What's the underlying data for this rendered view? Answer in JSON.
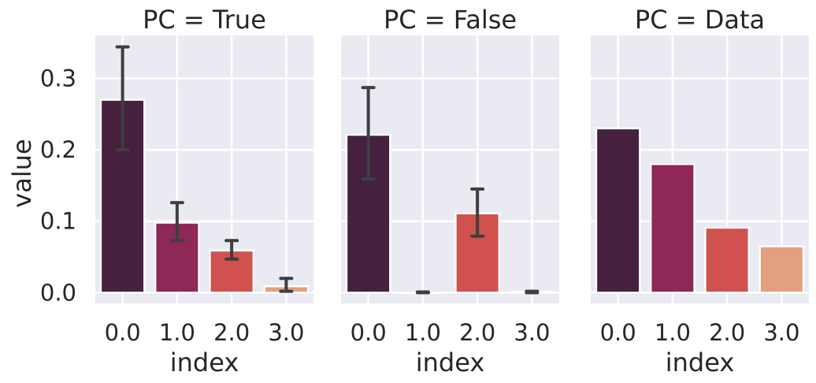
{
  "chart_data": {
    "type": "bar",
    "xlabel": "index",
    "ylabel": "value",
    "categories": [
      "0.0",
      "1.0",
      "2.0",
      "3.0"
    ],
    "ylim": [
      -0.015,
      0.36
    ],
    "yticks": [
      0.0,
      0.1,
      0.2,
      0.3
    ],
    "ytick_labels": [
      "0.0",
      "0.1",
      "0.2",
      "0.3"
    ],
    "colors": [
      "#45213f",
      "#8f2757",
      "#d1514f",
      "#e3a07e"
    ],
    "errorbar_color": "#3f3f3f",
    "panels": [
      {
        "title": "PC = True",
        "values": [
          0.27,
          0.098,
          0.059,
          0.009
        ],
        "err_low": [
          0.2,
          0.073,
          0.047,
          0.002
        ],
        "err_high": [
          0.344,
          0.126,
          0.073,
          0.02
        ]
      },
      {
        "title": "PC = False",
        "values": [
          0.221,
          0.0,
          0.111,
          0.001
        ],
        "err_low": [
          0.159,
          0.0,
          0.079,
          0.0
        ],
        "err_high": [
          0.287,
          0.001,
          0.145,
          0.002
        ]
      },
      {
        "title": "PC = Data",
        "values": [
          0.23,
          0.18,
          0.091,
          0.065
        ],
        "err_low": null,
        "err_high": null
      }
    ]
  }
}
